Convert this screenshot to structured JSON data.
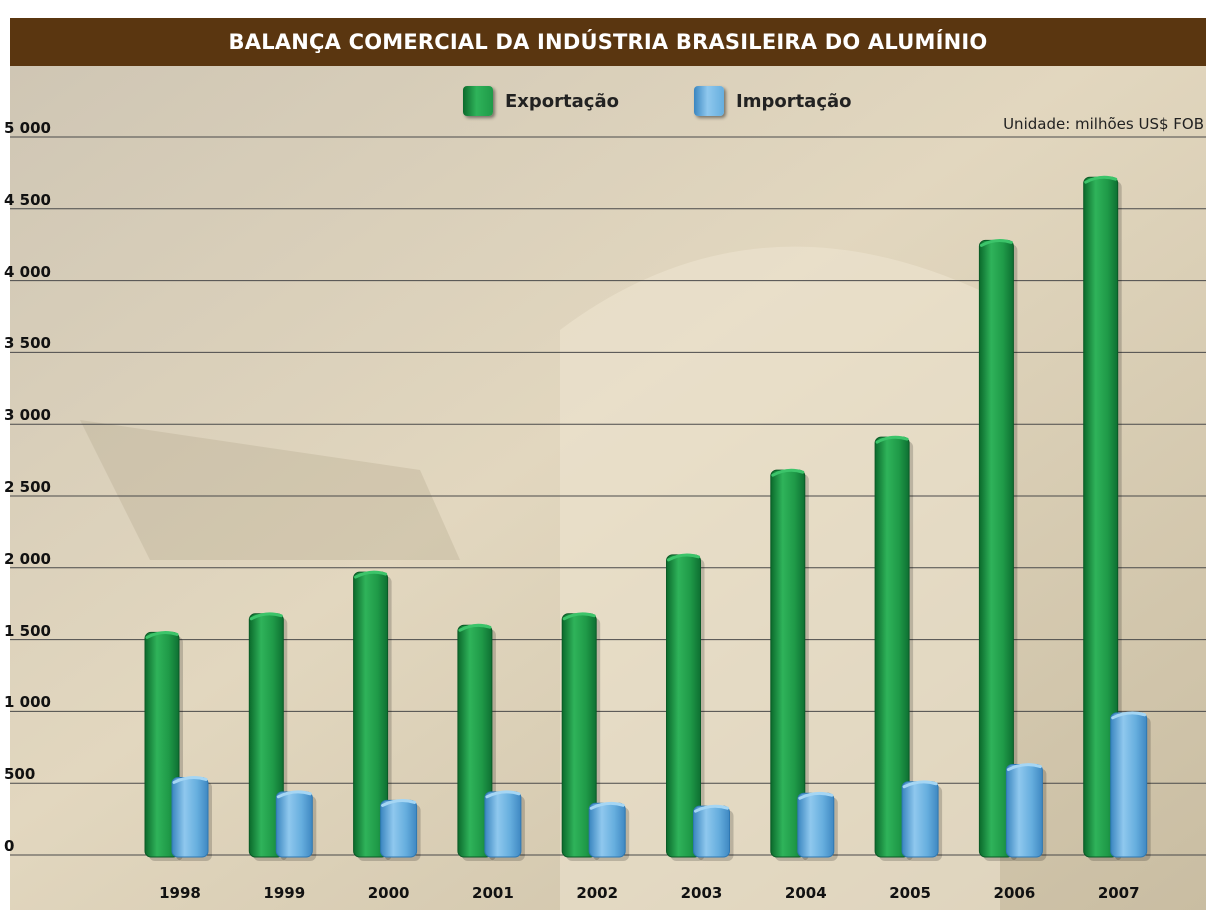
{
  "chart_data": {
    "type": "bar",
    "title": "BALANÇA COMERCIAL DA INDÚSTRIA BRASILEIRA DO ALUMÍNIO",
    "unit_note": "Unidade: milhões US$ FOB",
    "categories": [
      "1998",
      "1999",
      "2000",
      "2001",
      "2002",
      "2003",
      "2004",
      "2005",
      "2006",
      "2007"
    ],
    "series": [
      {
        "name": "Exportação",
        "color": "#1f9a48",
        "values": [
          1550,
          1680,
          1970,
          1600,
          1680,
          2090,
          2680,
          2910,
          4280,
          4720
        ]
      },
      {
        "name": "Importação",
        "color": "#66aede",
        "values": [
          540,
          440,
          380,
          440,
          360,
          340,
          430,
          510,
          630,
          990
        ]
      }
    ],
    "ylim": [
      0,
      5000
    ],
    "yticks": [
      {
        "value": 5000,
        "label": "5 000"
      },
      {
        "value": 4500,
        "label": "4 500"
      },
      {
        "value": 4000,
        "label": "4 000"
      },
      {
        "value": 3500,
        "label": "3 500"
      },
      {
        "value": 3000,
        "label": "3 000"
      },
      {
        "value": 2500,
        "label": "2 500"
      },
      {
        "value": 2000,
        "label": "2 000"
      },
      {
        "value": 1500,
        "label": "1 500"
      },
      {
        "value": 1000,
        "label": "1 000"
      },
      {
        "value": 500,
        "label": "500"
      },
      {
        "value": 0,
        "label": "0"
      }
    ],
    "xlabel": "",
    "ylabel": "",
    "grid": true,
    "legend_position": "top-center",
    "colors": {
      "title_bar": "#5a3610",
      "background": "#d8cbb0",
      "grid": "#4a4a4a"
    }
  }
}
